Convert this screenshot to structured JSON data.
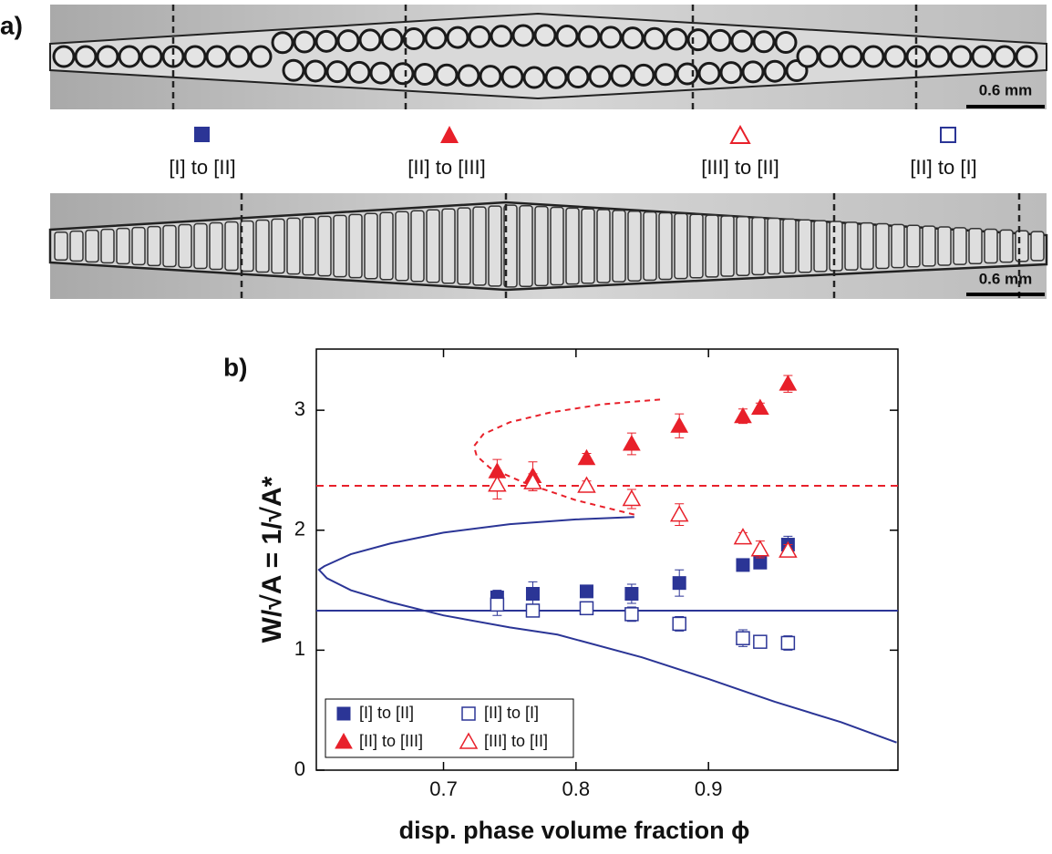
{
  "panel_a": {
    "label": "a)",
    "legend": [
      "[I] to [II]",
      "[II] to [III]",
      "[III] to [II]",
      "[II] to [I]"
    ],
    "images": [
      {
        "scale_bar": "0.6 mm"
      },
      {
        "scale_bar": "0.6 mm"
      }
    ]
  },
  "chart_data": {
    "type": "scatter",
    "label": "b)",
    "x_label": "disp. phase volume fraction ϕ",
    "y_label": "W/√A = 1/√A*",
    "xlim": [
      0.604,
      1.043
    ],
    "ylim": [
      0,
      3.51
    ],
    "xticks": [
      0.7,
      0.8,
      0.9
    ],
    "yticks": [
      0,
      1,
      2,
      3
    ],
    "legend_position": "lower left",
    "x": [
      0.7405,
      0.7674,
      0.808,
      0.842,
      0.878,
      0.926,
      0.939,
      0.96
    ],
    "series": [
      {
        "name": "[I] to [II]",
        "color": "#2b3596",
        "marker": "square",
        "filled": true,
        "values": [
          1.44,
          1.47,
          1.49,
          1.47,
          1.56,
          1.71,
          1.73,
          1.88
        ],
        "errors": [
          0.06,
          0.1,
          0.04,
          0.08,
          0.11,
          0.03,
          0.03,
          0.07
        ]
      },
      {
        "name": "[II] to [I]",
        "color": "#2b3596",
        "marker": "square",
        "filled": false,
        "values": [
          1.38,
          1.33,
          1.35,
          1.3,
          1.22,
          1.1,
          1.07,
          1.06
        ],
        "errors": [
          0.09,
          0.05,
          0.04,
          0.06,
          0.06,
          0.07,
          0.05,
          0.06
        ]
      },
      {
        "name": "[II] to [III]",
        "color": "#e8202a",
        "marker": "triangle",
        "filled": true,
        "values": [
          2.49,
          2.45,
          2.6,
          2.72,
          2.87,
          2.95,
          3.02,
          3.22
        ],
        "errors": [
          0.1,
          0.12,
          0.04,
          0.09,
          0.1,
          0.06,
          0.04,
          0.07
        ]
      },
      {
        "name": "[III] to [II]",
        "color": "#e8202a",
        "marker": "triangle",
        "filled": false,
        "values": [
          2.38,
          2.4,
          2.37,
          2.26,
          2.13,
          1.94,
          1.84,
          1.83
        ],
        "errors": [
          0.12,
          0.07,
          0.04,
          0.08,
          0.09,
          0.04,
          0.07,
          0.05
        ]
      }
    ],
    "hlines": [
      {
        "value": 1.33,
        "color": "#2b3596",
        "dashed": false
      },
      {
        "value": 2.37,
        "color": "#e8202a",
        "dashed": true
      }
    ],
    "curves": [
      {
        "color": "#2b3596",
        "dashed": false,
        "x": [
          0.844,
          0.8,
          0.75,
          0.7,
          0.66,
          0.63,
          0.61,
          0.606,
          0.612,
          0.63,
          0.66,
          0.7,
          0.75,
          0.786,
          0.85,
          0.9,
          0.95,
          1.0,
          1.042
        ],
        "y": [
          2.11,
          2.09,
          2.05,
          1.98,
          1.89,
          1.8,
          1.7,
          1.67,
          1.6,
          1.5,
          1.4,
          1.29,
          1.19,
          1.13,
          0.94,
          0.76,
          0.57,
          0.4,
          0.23
        ]
      },
      {
        "color": "#e8202a",
        "dashed": true,
        "x": [
          0.844,
          0.8,
          0.76,
          0.735,
          0.725,
          0.723,
          0.73,
          0.75,
          0.78,
          0.82,
          0.864
        ],
        "y": [
          2.13,
          2.25,
          2.4,
          2.52,
          2.62,
          2.7,
          2.8,
          2.9,
          2.98,
          3.05,
          3.09
        ]
      }
    ]
  }
}
